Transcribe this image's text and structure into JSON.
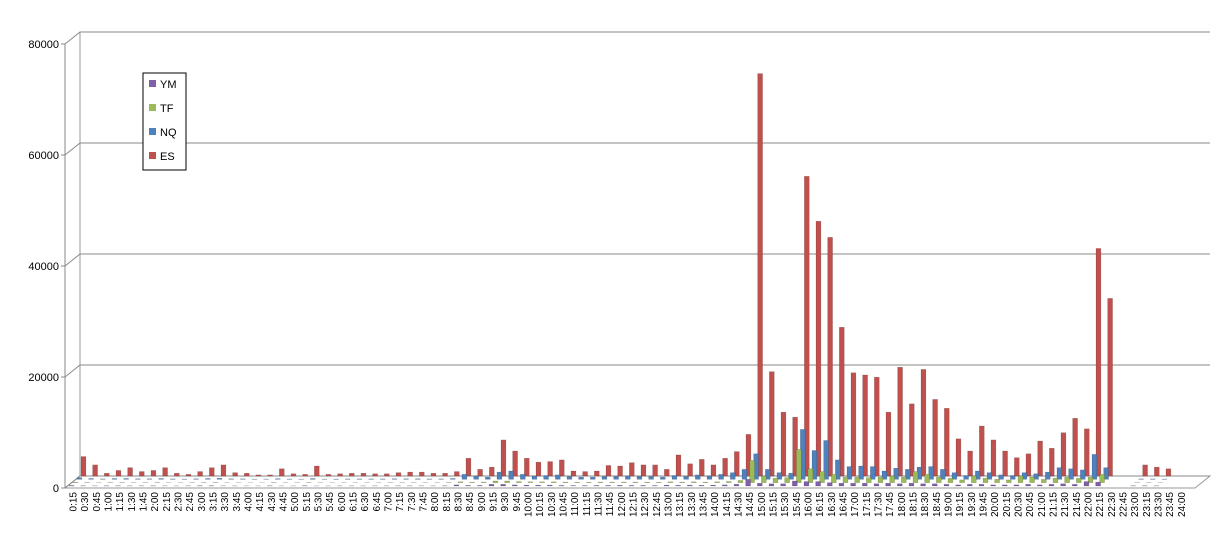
{
  "chart_data": {
    "type": "bar3d",
    "categories": [
      "0:15",
      "0:30",
      "0:45",
      "1:00",
      "1:15",
      "1:30",
      "1:45",
      "2:00",
      "2:15",
      "2:30",
      "2:45",
      "3:00",
      "3:15",
      "3:30",
      "3:45",
      "4:00",
      "4:15",
      "4:30",
      "4:45",
      "5:00",
      "5:15",
      "5:30",
      "5:45",
      "6:00",
      "6:15",
      "6:30",
      "6:45",
      "7:00",
      "7:15",
      "7:30",
      "7:45",
      "8:00",
      "8:15",
      "8:30",
      "8:45",
      "9:00",
      "9:15",
      "9:30",
      "9:45",
      "10:00",
      "10:15",
      "10:30",
      "10:45",
      "11:00",
      "11:15",
      "11:30",
      "11:45",
      "12:00",
      "12:15",
      "12:30",
      "12:45",
      "13:00",
      "13:15",
      "13:30",
      "13:45",
      "14:00",
      "14:15",
      "14:30",
      "14:45",
      "15:00",
      "15:15",
      "15:30",
      "15:45",
      "16:00",
      "16:15",
      "16:30",
      "16:45",
      "17:00",
      "17:15",
      "17:30",
      "17:45",
      "18:00",
      "18:15",
      "18:30",
      "18:45",
      "19:00",
      "19:15",
      "19:30",
      "19:45",
      "20:00",
      "20:15",
      "20:30",
      "20:45",
      "21:00",
      "21:15",
      "21:30",
      "21:45",
      "22:00",
      "22:15",
      "22:30",
      "22:45",
      "23:00",
      "23:15",
      "23:30",
      "23:45",
      "24:00"
    ],
    "series": [
      {
        "name": "YM",
        "color": "#7f60a8",
        "values": [
          100,
          50,
          30,
          50,
          50,
          40,
          40,
          50,
          30,
          20,
          40,
          60,
          60,
          30,
          30,
          20,
          20,
          50,
          20,
          20,
          60,
          20,
          20,
          30,
          30,
          30,
          30,
          30,
          40,
          40,
          30,
          30,
          50,
          200,
          100,
          100,
          300,
          300,
          200,
          150,
          150,
          150,
          100,
          80,
          80,
          100,
          100,
          120,
          100,
          100,
          80,
          150,
          120,
          150,
          120,
          150,
          200,
          300,
          1200,
          500,
          400,
          400,
          900,
          800,
          800,
          600,
          500,
          500,
          500,
          400,
          500,
          400,
          500,
          400,
          400,
          300,
          200,
          300,
          300,
          200,
          200,
          200,
          300,
          200,
          300,
          400,
          300,
          800,
          700,
          0,
          0,
          50,
          50,
          40,
          0,
          0
        ]
      },
      {
        "name": "TF",
        "color": "#9bbb59",
        "values": [
          80,
          40,
          20,
          40,
          40,
          30,
          30,
          40,
          20,
          20,
          30,
          40,
          50,
          20,
          20,
          10,
          10,
          40,
          20,
          20,
          40,
          20,
          20,
          20,
          20,
          20,
          20,
          30,
          30,
          30,
          20,
          20,
          40,
          150,
          80,
          100,
          300,
          300,
          200,
          150,
          150,
          150,
          100,
          80,
          80,
          100,
          100,
          100,
          100,
          100,
          80,
          150,
          100,
          150,
          100,
          150,
          200,
          400,
          4000,
          1200,
          800,
          900,
          6000,
          2500,
          2000,
          1500,
          1000,
          1000,
          900,
          1000,
          1200,
          1000,
          2000,
          1500,
          1000,
          800,
          500,
          1200,
          800,
          600,
          500,
          1200,
          1000,
          600,
          800,
          1000,
          800,
          1000,
          1500,
          0,
          0,
          30,
          30,
          20,
          0,
          0
        ]
      },
      {
        "name": "NQ",
        "color": "#4f81bd",
        "values": [
          300,
          150,
          80,
          150,
          150,
          100,
          100,
          150,
          80,
          60,
          100,
          150,
          200,
          100,
          80,
          50,
          50,
          120,
          60,
          50,
          150,
          50,
          60,
          80,
          80,
          80,
          80,
          100,
          100,
          100,
          80,
          80,
          150,
          900,
          600,
          400,
          1300,
          1500,
          900,
          600,
          700,
          800,
          500,
          400,
          400,
          500,
          500,
          600,
          500,
          500,
          400,
          700,
          500,
          800,
          600,
          900,
          1200,
          1800,
          4600,
          1800,
          1200,
          1100,
          9000,
          5200,
          7000,
          3500,
          2300,
          2400,
          2300,
          1500,
          2000,
          1800,
          2200,
          2300,
          1800,
          1200,
          700,
          1500,
          1200,
          800,
          700,
          1200,
          1000,
          1300,
          2100,
          1900,
          1700,
          4500,
          2100,
          0,
          0,
          80,
          80,
          60,
          0,
          0
        ]
      },
      {
        "name": "ES",
        "color": "#c0504d",
        "values": [
          3500,
          2000,
          500,
          1000,
          1500,
          800,
          1000,
          1500,
          500,
          300,
          800,
          1500,
          2000,
          600,
          500,
          200,
          200,
          1300,
          400,
          300,
          1800,
          300,
          400,
          500,
          500,
          400,
          400,
          600,
          700,
          700,
          500,
          500,
          800,
          3200,
          1200,
          1600,
          6500,
          4500,
          3200,
          2500,
          2600,
          2900,
          900,
          800,
          900,
          1900,
          1800,
          2400,
          2000,
          2000,
          1200,
          3800,
          2200,
          3000,
          2000,
          3200,
          4400,
          7500,
          72500,
          18800,
          11500,
          10600,
          54000,
          45900,
          43000,
          26800,
          18600,
          18200,
          17800,
          11500,
          19600,
          13000,
          19200,
          13800,
          12200,
          6700,
          4500,
          9000,
          6500,
          4500,
          3300,
          4000,
          6300,
          5000,
          7800,
          10400,
          8500,
          41000,
          32000,
          0,
          0,
          2000,
          1600,
          1300,
          0,
          0
        ]
      }
    ],
    "ylim": [
      0,
      80000
    ],
    "yticks": [
      0,
      20000,
      40000,
      60000,
      80000
    ],
    "grid": true,
    "legend": "top-left"
  }
}
